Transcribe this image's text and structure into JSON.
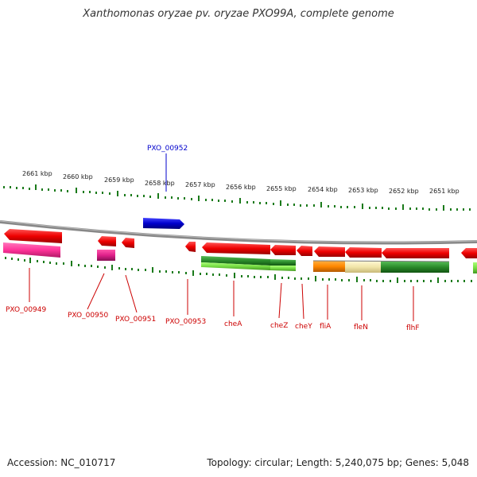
{
  "title": "Xanthomonas oryzae pv. oryzae PXO99A, complete genome",
  "footer": {
    "accession": "Accession: NC_010717",
    "summary": "Topology: circular; Length: 5,240,075 bp; Genes: 5,048"
  },
  "kbp_labels": [
    "2661 kbp",
    "2660 kbp",
    "2659 kbp",
    "2658 kbp",
    "2657 kbp",
    "2656 kbp",
    "2655 kbp",
    "2654 kbp",
    "2653 kbp",
    "2652 kbp",
    "2651 kbp"
  ],
  "colors": {
    "red": "#ee0000",
    "blue": "#0000cc",
    "pink": "#ff3399",
    "magenta": "#e0208a",
    "green": "#2a8a2a",
    "light_green": "#77dd44",
    "orange": "#ff8800",
    "tan": "#f0e4a8",
    "tick_green": "#1a7a1a",
    "backbone": "#888888"
  },
  "labels": {
    "top": [
      "PXO_00952"
    ],
    "bottom": [
      "PXO_00949",
      "PXO_00950",
      "PXO_00951",
      "PXO_00953",
      "cheA",
      "cheZ",
      "cheY",
      "fliA",
      "fleN",
      "flhF"
    ]
  }
}
